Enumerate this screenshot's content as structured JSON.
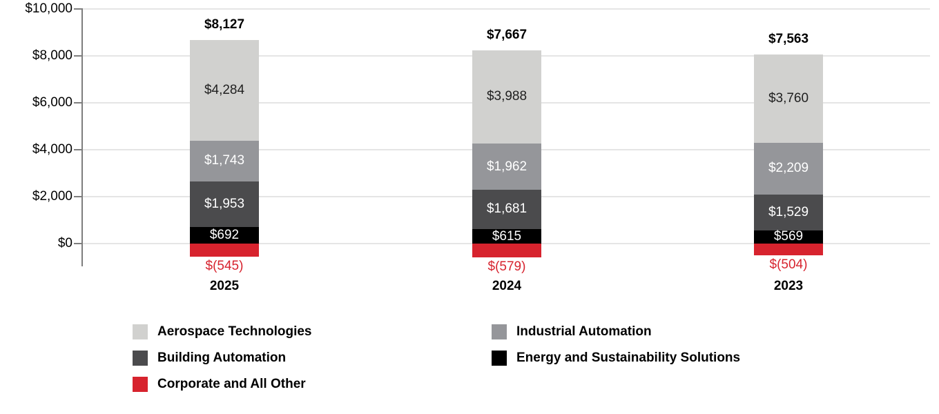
{
  "chart_data": {
    "type": "bar",
    "stacked": true,
    "title": "",
    "categories": [
      "2025",
      "2024",
      "2023"
    ],
    "series": [
      {
        "name": "Aerospace Technologies",
        "color": "#d1d1cf",
        "text_color": "#1f1f1f",
        "values": [
          4284,
          3988,
          3760
        ],
        "labels": [
          "$4,284",
          "$3,988",
          "$3,760"
        ]
      },
      {
        "name": "Industrial Automation",
        "color": "#95969a",
        "text_color": "#ffffff",
        "values": [
          1743,
          1962,
          2209
        ],
        "labels": [
          "$1,743",
          "$1,962",
          "$2,209"
        ]
      },
      {
        "name": "Building Automation",
        "color": "#4b4b4d",
        "text_color": "#ffffff",
        "values": [
          1953,
          1681,
          1529
        ],
        "labels": [
          "$1,953",
          "$1,681",
          "$1,529"
        ]
      },
      {
        "name": "Energy and Sustainability Solutions",
        "color": "#000000",
        "text_color": "#ffffff",
        "values": [
          692,
          615,
          569
        ],
        "labels": [
          "$692",
          "$615",
          "$569"
        ]
      },
      {
        "name": "Corporate and All Other",
        "color": "#d7232e",
        "text_color": "#d7232e",
        "values": [
          -545,
          -579,
          -504
        ],
        "labels": [
          "$(545)",
          "$(579)",
          "$(504)"
        ]
      }
    ],
    "totals": {
      "values": [
        8127,
        7667,
        7563
      ],
      "labels": [
        "$8,127",
        "$7,667",
        "$7,563"
      ]
    },
    "y_axis": {
      "min": 0,
      "max": 10000,
      "ticks": [
        {
          "value": 10000,
          "label": "$10,000"
        },
        {
          "value": 8000,
          "label": "$8,000"
        },
        {
          "value": 6000,
          "label": "$6,000"
        },
        {
          "value": 4000,
          "label": "$4,000"
        },
        {
          "value": 2000,
          "label": "$2,000"
        },
        {
          "value": 0,
          "label": "$0"
        }
      ]
    },
    "grid": true,
    "legend": {
      "position": "bottom",
      "columns": [
        {
          "series_indexes": [
            0,
            2,
            4
          ]
        },
        {
          "series_indexes": [
            1,
            3
          ]
        }
      ]
    }
  }
}
